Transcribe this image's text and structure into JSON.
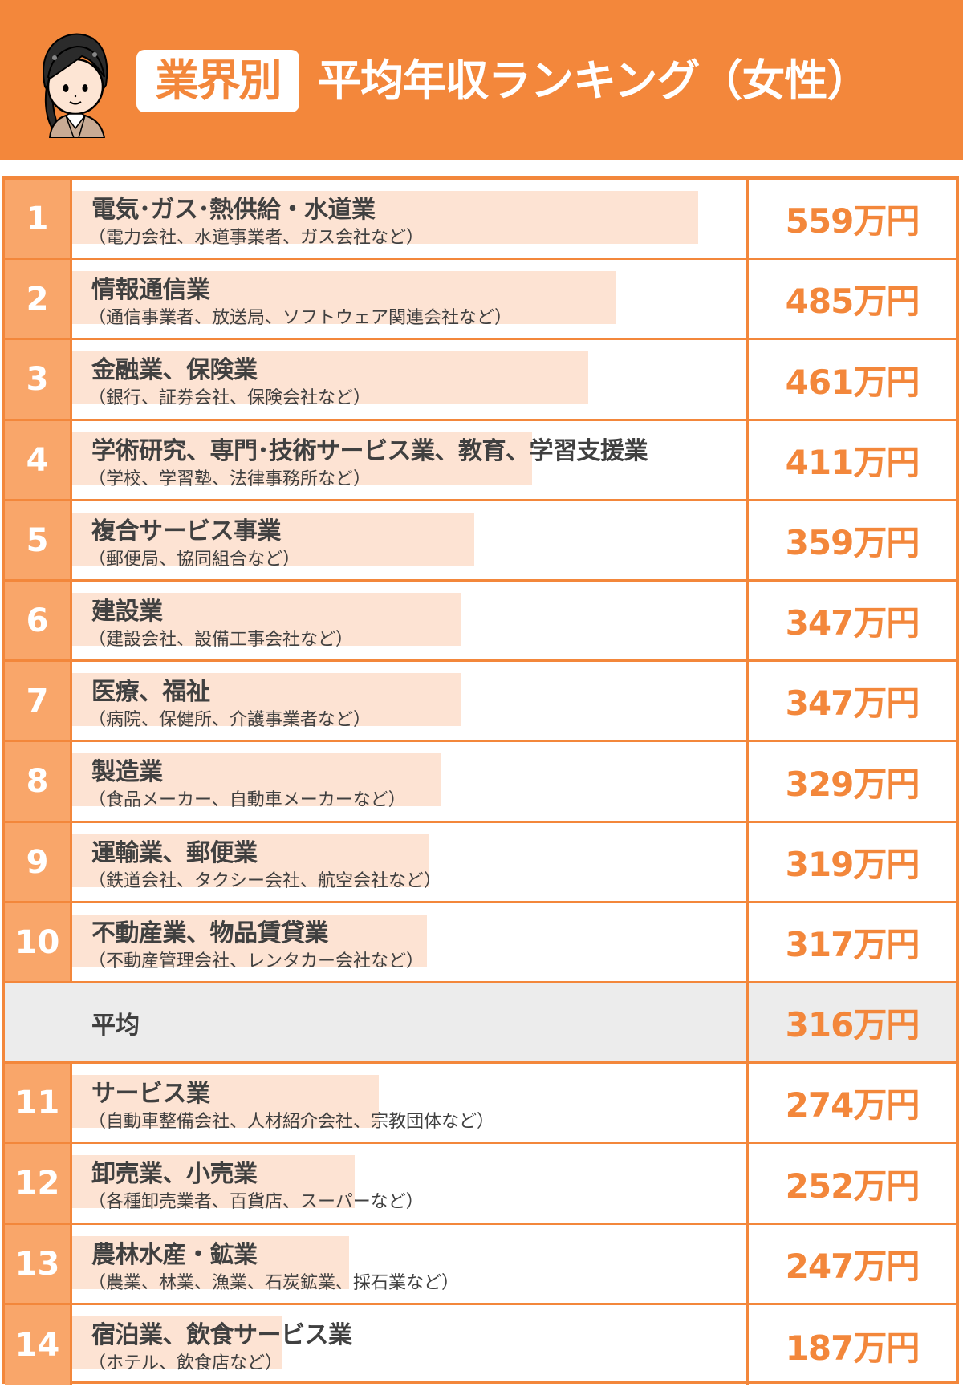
{
  "header": {
    "badge": "業界別",
    "title": "平均年収ランキング（女性）",
    "avatar_icon": "woman-in-suit-avatar"
  },
  "colors": {
    "accent": "#f3873b",
    "rank_bg": "#f9a66a",
    "bar": "#fde3d3",
    "average_bg": "#ececec",
    "text": "#404040"
  },
  "rows": [
    {
      "rank": "1",
      "name": "電気･ガス･熱供給・水道業",
      "sub": "（電力会社、水道事業者、ガス会社など）",
      "value": "559万円"
    },
    {
      "rank": "2",
      "name": "情報通信業",
      "sub": "（通信事業者、放送局、ソフトウェア関連会社など）",
      "value": "485万円"
    },
    {
      "rank": "3",
      "name": "金融業、保険業",
      "sub": "（銀行、証券会社、保険会社など）",
      "value": "461万円"
    },
    {
      "rank": "4",
      "name": "学術研究、専門･技術サービス業、教育、学習支援業",
      "sub": "（学校、学習塾、法律事務所など）",
      "value": "411万円"
    },
    {
      "rank": "5",
      "name": "複合サービス事業",
      "sub": "（郵便局、協同組合など）",
      "value": "359万円"
    },
    {
      "rank": "6",
      "name": "建設業",
      "sub": "（建設会社、設備工事会社など）",
      "value": "347万円"
    },
    {
      "rank": "7",
      "name": "医療、福祉",
      "sub": "（病院、保健所、介護事業者など）",
      "value": "347万円"
    },
    {
      "rank": "8",
      "name": "製造業",
      "sub": "（食品メーカー、自動車メーカーなど）",
      "value": "329万円"
    },
    {
      "rank": "9",
      "name": "運輸業、郵便業",
      "sub": "（鉄道会社、タクシー会社、航空会社など）",
      "value": "319万円"
    },
    {
      "rank": "10",
      "name": "不動産業、物品賃貸業",
      "sub": "（不動産管理会社、レンタカー会社など）",
      "value": "317万円"
    },
    {
      "rank": "11",
      "name": "サービス業",
      "sub": "（自動車整備会社、人材紹介会社、宗教団体など）",
      "value": "274万円"
    },
    {
      "rank": "12",
      "name": "卸売業、小売業",
      "sub": "（各種卸売業者、百貨店、スーパーなど）",
      "value": "252万円"
    },
    {
      "rank": "13",
      "name": "農林水産・鉱業",
      "sub": "（農業、林業、漁業、石炭鉱業、採石業など）",
      "value": "247万円"
    },
    {
      "rank": "14",
      "name": "宿泊業、飲食サービス業",
      "sub": "（ホテル、飲食店など）",
      "value": "187万円"
    }
  ],
  "average": {
    "label": "平均",
    "value": "316万円"
  },
  "chart_data": {
    "type": "bar",
    "orientation": "horizontal",
    "title": "業界別 平均年収ランキング（女性）",
    "unit": "万円",
    "categories": [
      "電気･ガス･熱供給・水道業",
      "情報通信業",
      "金融業、保険業",
      "学術研究、専門･技術サービス業、教育、学習支援業",
      "複合サービス事業",
      "建設業",
      "医療、福祉",
      "製造業",
      "運輸業、郵便業",
      "不動産業、物品賃貸業",
      "サービス業",
      "卸売業、小売業",
      "農林水産・鉱業",
      "宿泊業、飲食サービス業"
    ],
    "values": [
      559,
      485,
      461,
      411,
      359,
      347,
      347,
      329,
      319,
      317,
      274,
      252,
      247,
      187
    ],
    "average": 316,
    "average_position_after_rank": 10,
    "xlabel": "",
    "ylabel": "",
    "grid": false,
    "legend": false
  }
}
